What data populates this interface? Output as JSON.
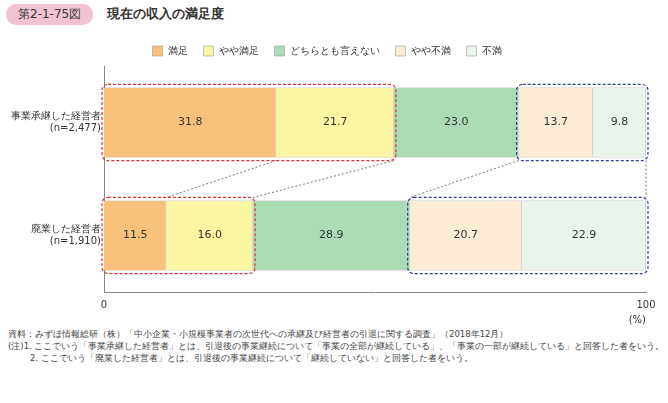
{
  "chart_data": {
    "type": "bar",
    "figure_label": "第2-1-75図",
    "title": "現在の収入の満足度",
    "orientation": "horizontal",
    "stacked": true,
    "data_labels": true,
    "legend": "top",
    "grid": false,
    "categories": [
      "事業承継した経営者\n(n=2,477)",
      "廃業した経営者\n(n=1,910)"
    ],
    "series": [
      {
        "name": "満足",
        "color": "#f8c27c",
        "values": [
          31.8,
          11.5
        ],
        "value_labels": [
          "31.8",
          "11.5"
        ]
      },
      {
        "name": "やや満足",
        "color": "#fbf6a3",
        "values": [
          21.7,
          16.0
        ],
        "value_labels": [
          "21.7",
          "16.0"
        ]
      },
      {
        "name": "どちらとも言えない",
        "color": "#abdcb6",
        "values": [
          23.0,
          28.9
        ],
        "value_labels": [
          "23.0",
          "28.9"
        ]
      },
      {
        "name": "やや不満",
        "color": "#fdecd4",
        "values": [
          13.7,
          20.7
        ],
        "value_labels": [
          "13.7",
          "20.7"
        ]
      },
      {
        "name": "不満",
        "color": "#eaf4eb",
        "values": [
          9.8,
          22.9
        ],
        "value_labels": [
          "9.8",
          "22.9"
        ]
      }
    ],
    "xlim": [
      0,
      100
    ],
    "xticks": [
      0,
      100
    ],
    "x_label": "(%)",
    "source": "資料：みずほ情報総研（株）「中小企業・小規模事業者の次世代への承継及び経営者の引退に関する調査」（2018年12月）",
    "notes": [
      "(注)1. ここでいう「事業承継した経営者」とは、引退後の事業継続について「事業の全部が継続している」、「事業の一部が継続している」と回答した者をいう。",
      "2. ここでいう「廃業した経営者」とは、引退後の事業継続について「継続していない」と回答した者をいう。"
    ]
  }
}
